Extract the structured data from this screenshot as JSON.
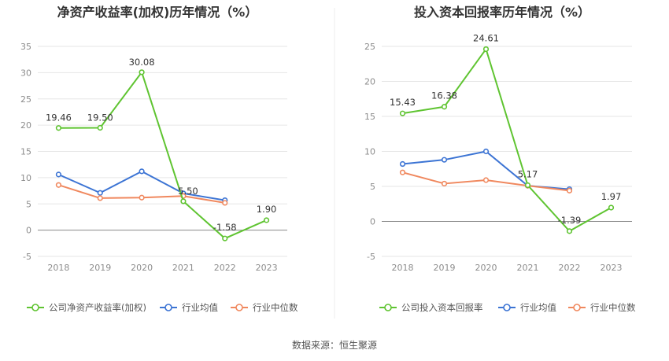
{
  "source_label": "数据来源：恒生聚源",
  "chart_data": [
    {
      "type": "line",
      "title": "净资产收益率(加权)历年情况（%）",
      "x": [
        "2018",
        "2019",
        "2020",
        "2021",
        "2022",
        "2023"
      ],
      "ylim": [
        -5,
        35
      ],
      "yticks": [
        -5,
        0,
        5,
        10,
        15,
        20,
        25,
        30,
        35
      ],
      "grid": true,
      "legend_position": "bottom",
      "series": [
        {
          "name": "公司净资产收益率(加权)",
          "color": "#5fc431",
          "values": [
            19.46,
            19.5,
            30.08,
            5.5,
            -1.58,
            1.9
          ],
          "labels": [
            "19.46",
            "19.50",
            "30.08",
            "5.50",
            "-1.58",
            "1.90"
          ]
        },
        {
          "name": "行业均值",
          "color": "#3c74d4",
          "values": [
            10.6,
            7.1,
            11.2,
            7.0,
            5.7,
            null
          ]
        },
        {
          "name": "行业中位数",
          "color": "#f0885e",
          "values": [
            8.6,
            6.1,
            6.2,
            6.5,
            5.2,
            null
          ]
        }
      ]
    },
    {
      "type": "line",
      "title": "投入资本回报率历年情况（%）",
      "x": [
        "2018",
        "2019",
        "2020",
        "2021",
        "2022",
        "2023"
      ],
      "ylim": [
        -5,
        25
      ],
      "yticks": [
        -5,
        0,
        5,
        10,
        15,
        20,
        25
      ],
      "grid": true,
      "legend_position": "bottom",
      "series": [
        {
          "name": "公司投入资本回报率",
          "color": "#5fc431",
          "values": [
            15.43,
            16.38,
            24.61,
            5.17,
            -1.39,
            1.97
          ],
          "labels": [
            "15.43",
            "16.38",
            "24.61",
            "5.17",
            "-1.39",
            "1.97"
          ]
        },
        {
          "name": "行业均值",
          "color": "#3c74d4",
          "values": [
            8.2,
            8.8,
            10.0,
            5.1,
            4.6,
            null
          ]
        },
        {
          "name": "行业中位数",
          "color": "#f0885e",
          "values": [
            7.0,
            5.4,
            5.9,
            5.1,
            4.4,
            null
          ]
        }
      ]
    }
  ]
}
